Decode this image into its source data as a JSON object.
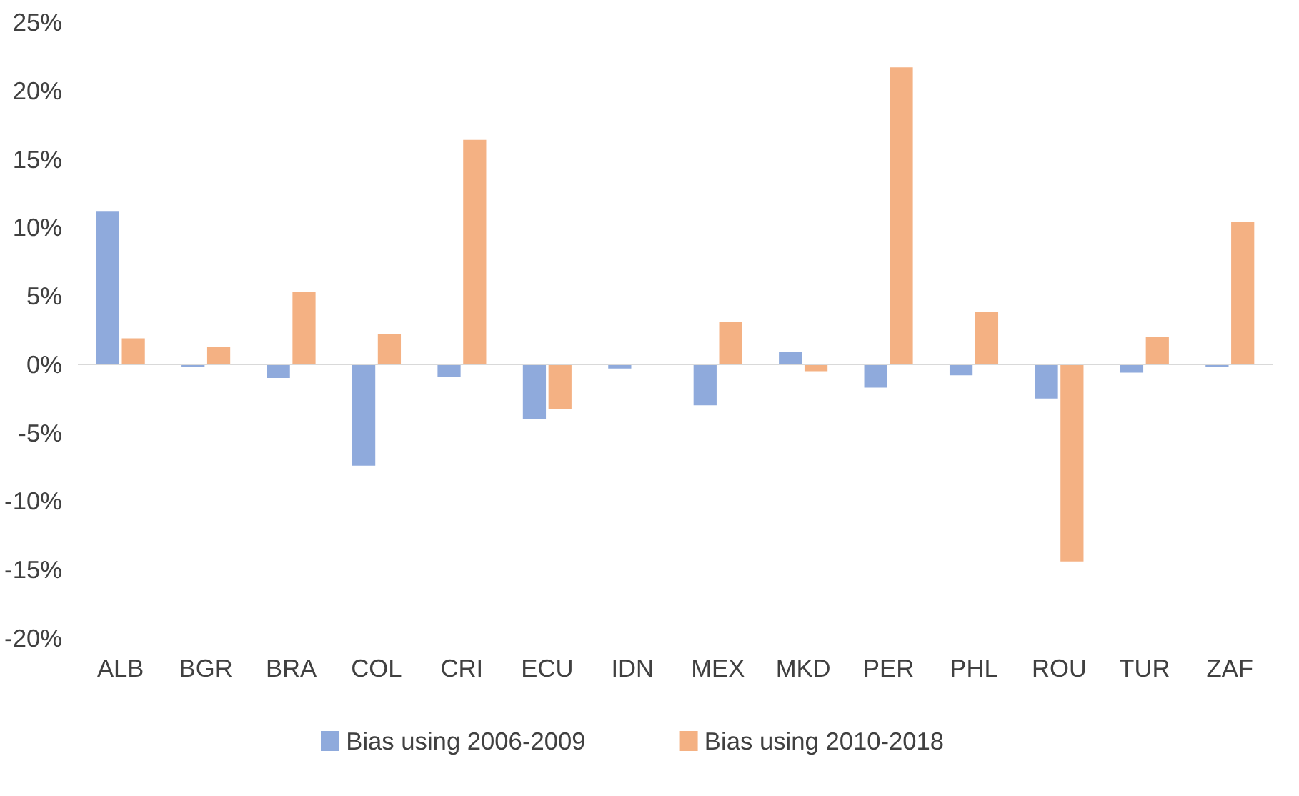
{
  "chart_data": {
    "type": "bar",
    "categories": [
      "ALB",
      "BGR",
      "BRA",
      "COL",
      "CRI",
      "ECU",
      "IDN",
      "MEX",
      "MKD",
      "PER",
      "PHL",
      "ROU",
      "TUR",
      "ZAF"
    ],
    "series": [
      {
        "name": "Bias using 2006-2009",
        "color": "#8faadc",
        "values": [
          11.2,
          -0.2,
          -1.0,
          -7.4,
          -0.9,
          -4.0,
          -0.3,
          -3.0,
          0.9,
          -1.7,
          -0.8,
          -2.5,
          -0.6,
          -0.2
        ]
      },
      {
        "name": "Bias using 2010-2018",
        "color": "#f4b183",
        "values": [
          1.9,
          1.3,
          5.3,
          2.2,
          16.4,
          -3.3,
          0,
          3.1,
          -0.5,
          21.7,
          3.8,
          -14.4,
          2.0,
          10.4
        ]
      }
    ],
    "ylim": [
      -20,
      25
    ],
    "yticks": [
      {
        "value": -20,
        "label": "-20%"
      },
      {
        "value": -15,
        "label": "-15%"
      },
      {
        "value": -10,
        "label": "-10%"
      },
      {
        "value": -5,
        "label": "-5%"
      },
      {
        "value": 0,
        "label": "0%"
      },
      {
        "value": 5,
        "label": "5%"
      },
      {
        "value": 10,
        "label": "10%"
      },
      {
        "value": 15,
        "label": "15%"
      },
      {
        "value": 20,
        "label": "20%"
      },
      {
        "value": 25,
        "label": "25%"
      }
    ],
    "ref_lines": [
      {
        "axis": "y",
        "value": 0,
        "color": "#d9d9d9"
      }
    ],
    "grid": false,
    "legend": "bottom"
  }
}
